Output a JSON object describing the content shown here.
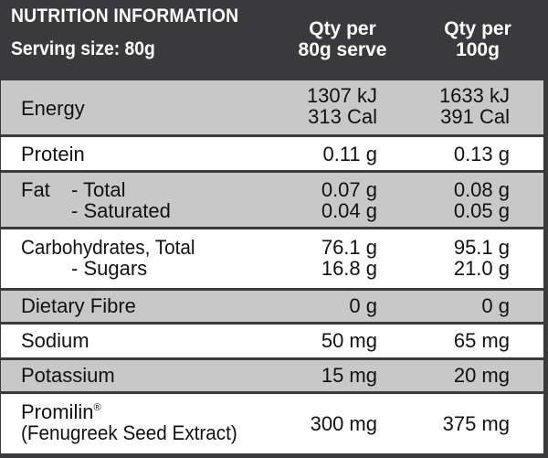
{
  "header": {
    "title": "NUTRITION INFORMATION",
    "serving": "Serving size: 80g",
    "col1": [
      "Qty per",
      "80g serve"
    ],
    "col2": [
      "Qty per",
      "100g"
    ]
  },
  "rows": {
    "energy": {
      "label": "Energy",
      "v1": [
        "1307 kJ",
        "313 Cal"
      ],
      "v2": [
        "1633 kJ",
        "391 Cal"
      ]
    },
    "protein": {
      "label": "Protein",
      "v1": "0.11 g",
      "v2": "0.13 g"
    },
    "fat": {
      "label": "Fat",
      "sub1": "- Total",
      "sub2": "- Saturated",
      "v1": [
        "0.07 g",
        "0.04 g"
      ],
      "v2": [
        "0.08 g",
        "0.05 g"
      ]
    },
    "carbs": {
      "label": "Carbohydrates, Total",
      "sub": "- Sugars",
      "v1": [
        "76.1 g",
        "16.8 g"
      ],
      "v2": [
        "95.1 g",
        "21.0 g"
      ]
    },
    "fibre": {
      "label": "Dietary Fibre",
      "v1": "0 g",
      "v2": "0 g"
    },
    "sodium": {
      "label": "Sodium",
      "v1": "50 mg",
      "v2": "65 mg"
    },
    "potassium": {
      "label": "Potassium",
      "v1": "15 mg",
      "v2": "20 mg"
    },
    "promilin": {
      "label": "Promilin",
      "mark": "®",
      "label2": "(Fenugreek Seed Extract)",
      "v1": "300 mg",
      "v2": "375 mg"
    }
  },
  "colors": {
    "header_bg": "#3a3a3c",
    "shade_row": "#c9c8c8",
    "white_row": "#ffffff",
    "text": "#111111"
  }
}
